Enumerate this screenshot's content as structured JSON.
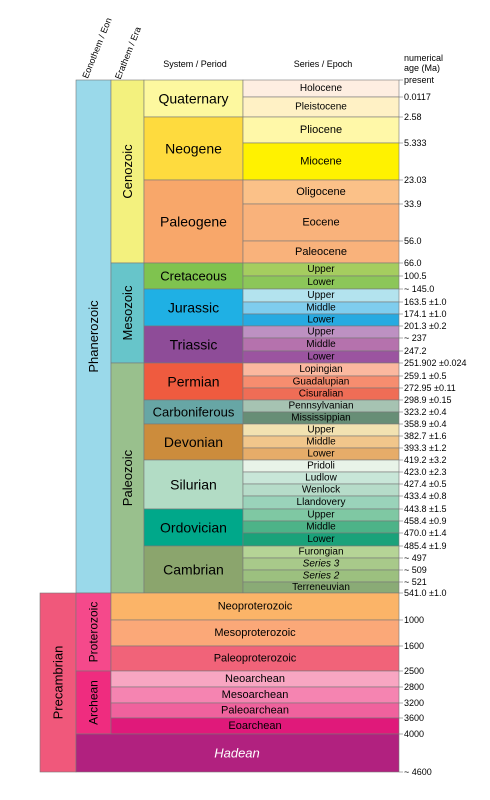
{
  "chart_data": {
    "type": "table",
    "title": "",
    "headers": {
      "eon": "Eonothem / Eon",
      "era": "Erathem / Era",
      "period": "System / Period",
      "epoch": "Series / Epoch",
      "age_line1": "numerical",
      "age_line2": "age (Ma)"
    },
    "ages": [
      {
        "label": "present",
        "value": 0
      },
      {
        "label": "0.0117",
        "value": 0.0117
      },
      {
        "label": "2.58",
        "value": 2.58
      },
      {
        "label": "5.333",
        "value": 5.333
      },
      {
        "label": "23.03",
        "value": 23.03
      },
      {
        "label": "33.9",
        "value": 33.9
      },
      {
        "label": "56.0",
        "value": 56.0
      },
      {
        "label": "66.0",
        "value": 66.0
      },
      {
        "label": "100.5",
        "value": 100.5
      },
      {
        "label": "~ 145.0",
        "value": 145.0
      },
      {
        "label": "163.5 ±1.0",
        "value": 163.5
      },
      {
        "label": "174.1 ±1.0",
        "value": 174.1
      },
      {
        "label": "201.3 ±0.2",
        "value": 201.3
      },
      {
        "label": "~ 237",
        "value": 237
      },
      {
        "label": "247.2",
        "value": 247.2
      },
      {
        "label": "251.902 ±0.024",
        "value": 251.902
      },
      {
        "label": "259.1 ±0.5",
        "value": 259.1
      },
      {
        "label": "272.95 ±0.11",
        "value": 272.95
      },
      {
        "label": "298.9 ±0.15",
        "value": 298.9
      },
      {
        "label": "323.2 ±0.4",
        "value": 323.2
      },
      {
        "label": "358.9 ±0.4",
        "value": 358.9
      },
      {
        "label": "382.7 ±1.6",
        "value": 382.7
      },
      {
        "label": "393.3 ±1.2",
        "value": 393.3
      },
      {
        "label": "419.2 ±3.2",
        "value": 419.2
      },
      {
        "label": "423.0 ±2.3",
        "value": 423.0
      },
      {
        "label": "427.4 ±0.5",
        "value": 427.4
      },
      {
        "label": "433.4 ±0.8",
        "value": 433.4
      },
      {
        "label": "443.8 ±1.5",
        "value": 443.8
      },
      {
        "label": "458.4 ±0.9",
        "value": 458.4
      },
      {
        "label": "470.0 ±1.4",
        "value": 470.0
      },
      {
        "label": "485.4 ±1.9",
        "value": 485.4
      },
      {
        "label": "~ 497",
        "value": 497
      },
      {
        "label": "~ 509",
        "value": 509
      },
      {
        "label": "~ 521",
        "value": 521
      },
      {
        "label": "541.0 ±1.0",
        "value": 541.0
      },
      {
        "label": "1000",
        "value": 1000
      },
      {
        "label": "1600",
        "value": 1600
      },
      {
        "label": "2500",
        "value": 2500
      },
      {
        "label": "2800",
        "value": 2800
      },
      {
        "label": "3200",
        "value": 3200
      },
      {
        "label": "3600",
        "value": 3600
      },
      {
        "label": "4000",
        "value": 4000
      },
      {
        "label": "~ 4600",
        "value": 4600
      }
    ],
    "eons": [
      {
        "name": "Phanerozoic",
        "from": 0,
        "to": 34,
        "color": "#9ad9ea"
      }
    ],
    "precambrian": {
      "name": "Precambrian",
      "from": 34,
      "to": 42,
      "color": "#f0587b"
    },
    "eras": [
      {
        "name": "Cenozoic",
        "from": 0,
        "to": 7,
        "color": "#f3f17e"
      },
      {
        "name": "Mesozoic",
        "from": 7,
        "to": 15,
        "color": "#67c5ca"
      },
      {
        "name": "Paleozoic",
        "from": 15,
        "to": 34,
        "color": "#99c08d"
      }
    ],
    "precambrian_eons": [
      {
        "name": "Proterozoic",
        "from": 34,
        "to": 37,
        "color": "#f5498b"
      },
      {
        "name": "Archean",
        "from": 37,
        "to": 41,
        "color": "#ef2c7f"
      }
    ],
    "periods": [
      {
        "name": "Quaternary",
        "from": 0,
        "to": 2,
        "color": "#fdf89f"
      },
      {
        "name": "Neogene",
        "from": 2,
        "to": 4,
        "color": "#fedb3e"
      },
      {
        "name": "Paleogene",
        "from": 4,
        "to": 7,
        "color": "#f8a76a"
      },
      {
        "name": "Cretaceous",
        "from": 7,
        "to": 9,
        "color": "#7fc34f"
      },
      {
        "name": "Jurassic",
        "from": 9,
        "to": 12,
        "color": "#1fb0e4"
      },
      {
        "name": "Triassic",
        "from": 12,
        "to": 15,
        "color": "#8e4c98"
      },
      {
        "name": "Permian",
        "from": 15,
        "to": 18,
        "color": "#ef5b3f"
      },
      {
        "name": "Carboniferous",
        "from": 18,
        "to": 20,
        "color": "#67a6a5"
      },
      {
        "name": "Devonian",
        "from": 20,
        "to": 23,
        "color": "#cc8c3c"
      },
      {
        "name": "Silurian",
        "from": 23,
        "to": 27,
        "color": "#b2dcc5"
      },
      {
        "name": "Ordovician",
        "from": 27,
        "to": 30,
        "color": "#00a88a"
      },
      {
        "name": "Cambrian",
        "from": 30,
        "to": 34,
        "color": "#8ba56d"
      }
    ],
    "epochs": [
      {
        "name": "Holocene",
        "from": 0,
        "to": 1,
        "color": "#feeee1"
      },
      {
        "name": "Pleistocene",
        "from": 1,
        "to": 2,
        "color": "#fff1c5"
      },
      {
        "name": "Pliocene",
        "from": 2,
        "to": 3,
        "color": "#fff8a8"
      },
      {
        "name": "Miocene",
        "from": 3,
        "to": 4,
        "color": "#fff200"
      },
      {
        "name": "Oligocene",
        "from": 4,
        "to": 5,
        "color": "#fbc188"
      },
      {
        "name": "Eocene",
        "from": 5,
        "to": 6,
        "color": "#f9b27b"
      },
      {
        "name": "Paleocene",
        "from": 6,
        "to": 7,
        "color": "#f9b27b"
      },
      {
        "name": "Upper",
        "from": 7,
        "to": 8,
        "color": "#a5cd5f"
      },
      {
        "name": "Lower",
        "from": 8,
        "to": 9,
        "color": "#8cc659"
      },
      {
        "name": "Upper",
        "from": 9,
        "to": 10,
        "color": "#b3e3ee"
      },
      {
        "name": "Middle",
        "from": 10,
        "to": 11,
        "color": "#7fcdee"
      },
      {
        "name": "Lower",
        "from": 11,
        "to": 12,
        "color": "#27aae1"
      },
      {
        "name": "Upper",
        "from": 12,
        "to": 13,
        "color": "#bd91c2"
      },
      {
        "name": "Middle",
        "from": 13,
        "to": 14,
        "color": "#b572ad"
      },
      {
        "name": "Lower",
        "from": 14,
        "to": 15,
        "color": "#9b54a0"
      },
      {
        "name": "Lopingian",
        "from": 15,
        "to": 16,
        "color": "#fbb89f"
      },
      {
        "name": "Guadalupian",
        "from": 16,
        "to": 17,
        "color": "#f68d6f"
      },
      {
        "name": "Cisuralian",
        "from": 17,
        "to": 18,
        "color": "#ef6d56"
      },
      {
        "name": "Pennsylvanian",
        "from": 18,
        "to": 19,
        "color": "#a6c3b2"
      },
      {
        "name": "Mississippian",
        "from": 19,
        "to": 20,
        "color": "#678e76"
      },
      {
        "name": "Upper",
        "from": 20,
        "to": 21,
        "color": "#f2e2b1"
      },
      {
        "name": "Middle",
        "from": 21,
        "to": 22,
        "color": "#f1c68b"
      },
      {
        "name": "Lower",
        "from": 22,
        "to": 23,
        "color": "#e6ac69"
      },
      {
        "name": "Pridoli",
        "from": 23,
        "to": 24,
        "color": "#e8f3e8"
      },
      {
        "name": "Ludlow",
        "from": 24,
        "to": 25,
        "color": "#c8e6d8"
      },
      {
        "name": "Wenlock",
        "from": 25,
        "to": 26,
        "color": "#b6dcc9"
      },
      {
        "name": "Llandovery",
        "from": 26,
        "to": 27,
        "color": "#9ad3ba"
      },
      {
        "name": "Upper",
        "from": 27,
        "to": 28,
        "color": "#7fc8a3"
      },
      {
        "name": "Middle",
        "from": 28,
        "to": 29,
        "color": "#4db388"
      },
      {
        "name": "Lower",
        "from": 29,
        "to": 30,
        "color": "#1aa27a"
      },
      {
        "name": "Furongian",
        "from": 30,
        "to": 31,
        "color": "#b5d496"
      },
      {
        "name": "Series 3",
        "from": 31,
        "to": 32,
        "color": "#a8c98a",
        "italic": true
      },
      {
        "name": "Series 2",
        "from": 32,
        "to": 33,
        "color": "#9cc07f",
        "italic": true
      },
      {
        "name": "Terreneuvian",
        "from": 33,
        "to": 34,
        "color": "#8aab76"
      }
    ],
    "precambrian_eras": [
      {
        "name": "Neoproterozoic",
        "from": 34,
        "to": 35,
        "color": "#fbb468"
      },
      {
        "name": "Mesoproterozoic",
        "from": 35,
        "to": 36,
        "color": "#fba878"
      },
      {
        "name": "Paleoproterozoic",
        "from": 36,
        "to": 37,
        "color": "#f16379"
      },
      {
        "name": "Neoarchean",
        "from": 37,
        "to": 38,
        "color": "#f8a6c2"
      },
      {
        "name": "Mesoarchean",
        "from": 38,
        "to": 39,
        "color": "#f584b1"
      },
      {
        "name": "Paleoarchean",
        "from": 39,
        "to": 40,
        "color": "#f0629d"
      },
      {
        "name": "Eoarchean",
        "from": 40,
        "to": 41,
        "color": "#e0197a"
      }
    ],
    "hadean": {
      "name": "Hadean",
      "from": 41,
      "to": 42,
      "color": "#b1217f",
      "italic": true
    }
  }
}
